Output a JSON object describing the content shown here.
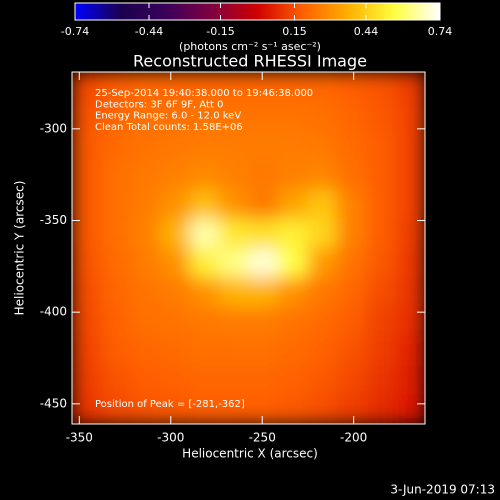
{
  "chart_data": {
    "type": "heatmap",
    "title": "Reconstructed RHESSI Image",
    "xlabel": "Heliocentric X (arcsec)",
    "ylabel": "Heliocentric Y (arcsec)",
    "colorbar_label": "(photons cm⁻² s⁻¹ asec⁻²)",
    "annotations": [
      "25-Sep-2014 19:40:38.000 to 19:46:38.000",
      "Detectors: 3F 6F 9F, Att 0",
      "Energy Range: 6.0 - 12.0 keV",
      "Clean     Total counts: 1.58E+06"
    ],
    "peak_label": "Position of Peak = [-281,-362]",
    "timestamp": "3-Jun-2019 07:13",
    "xlim": [
      -354,
      -161
    ],
    "ylim": [
      -461,
      -269
    ],
    "xticks": [
      -350,
      -300,
      -250,
      -200
    ],
    "yticks": [
      -300,
      -350,
      -400,
      -450
    ],
    "zlim": [
      -0.74,
      0.74
    ],
    "zticks": [
      -0.74,
      -0.44,
      -0.15,
      0.15,
      0.44,
      0.74
    ],
    "colormap": [
      "#0000ff",
      "#1a0050",
      "#3a005a",
      "#800040",
      "#d00000",
      "#ff6000",
      "#ffb000",
      "#ffff40",
      "#ffffff"
    ],
    "z": [
      [
        0.14,
        0.18,
        0.2,
        0.2,
        0.2,
        0.2,
        0.2,
        0.2,
        0.2,
        0.18,
        0.16,
        0.12
      ],
      [
        0.16,
        0.2,
        0.22,
        0.22,
        0.23,
        0.23,
        0.23,
        0.23,
        0.22,
        0.2,
        0.17,
        0.13
      ],
      [
        0.17,
        0.21,
        0.23,
        0.24,
        0.25,
        0.25,
        0.25,
        0.25,
        0.24,
        0.21,
        0.18,
        0.13
      ],
      [
        0.17,
        0.22,
        0.24,
        0.26,
        0.28,
        0.26,
        0.24,
        0.26,
        0.27,
        0.22,
        0.18,
        0.13
      ],
      [
        0.17,
        0.22,
        0.25,
        0.3,
        0.4,
        0.3,
        0.24,
        0.34,
        0.42,
        0.26,
        0.18,
        0.13
      ],
      [
        0.17,
        0.22,
        0.26,
        0.38,
        0.66,
        0.5,
        0.48,
        0.52,
        0.46,
        0.26,
        0.18,
        0.12
      ],
      [
        0.16,
        0.21,
        0.25,
        0.3,
        0.52,
        0.62,
        0.7,
        0.56,
        0.32,
        0.23,
        0.17,
        0.11
      ],
      [
        0.15,
        0.2,
        0.23,
        0.25,
        0.3,
        0.38,
        0.38,
        0.3,
        0.24,
        0.2,
        0.15,
        0.1
      ],
      [
        0.14,
        0.19,
        0.22,
        0.23,
        0.24,
        0.25,
        0.25,
        0.23,
        0.21,
        0.18,
        0.13,
        0.09
      ],
      [
        0.13,
        0.18,
        0.2,
        0.21,
        0.22,
        0.22,
        0.22,
        0.21,
        0.19,
        0.16,
        0.12,
        0.07
      ],
      [
        0.12,
        0.16,
        0.18,
        0.19,
        0.2,
        0.2,
        0.2,
        0.19,
        0.17,
        0.14,
        0.1,
        0.05
      ],
      [
        0.1,
        0.14,
        0.16,
        0.17,
        0.18,
        0.18,
        0.18,
        0.17,
        0.15,
        0.12,
        0.08,
        0.04
      ]
    ]
  }
}
